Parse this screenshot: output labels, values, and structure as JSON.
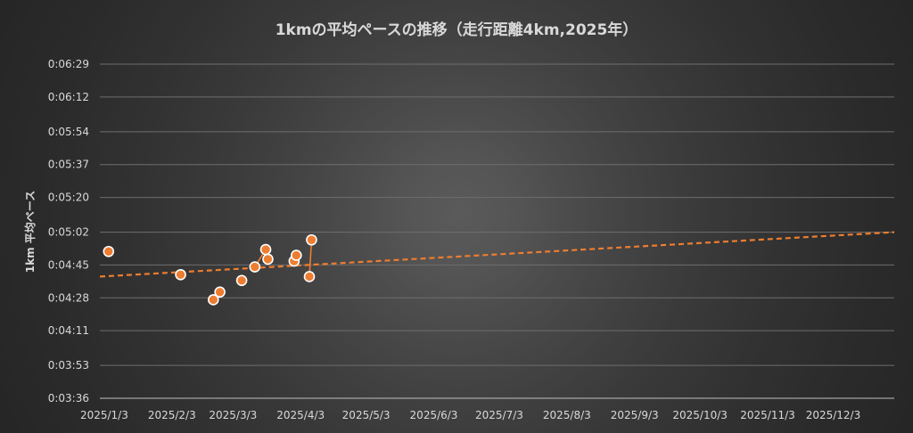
{
  "chart_data": {
    "type": "scatter",
    "title": "1kmの平均ペースの推移（走行距離4km,2025年）",
    "xlabel": "",
    "ylabel": "1km 平均ペース",
    "x_tick_labels": [
      "2025/1/3",
      "2025/2/3",
      "2025/3/3",
      "2025/4/3",
      "2025/5/3",
      "2025/6/3",
      "2025/7/3",
      "2025/8/3",
      "2025/9/3",
      "2025/10/3",
      "2025/11/3",
      "2025/12/3"
    ],
    "x_ticks": [
      "2025-01-03",
      "2025-02-03",
      "2025-03-03",
      "2025-04-03",
      "2025-05-03",
      "2025-06-03",
      "2025-07-03",
      "2025-08-03",
      "2025-09-03",
      "2025-10-03",
      "2025-11-03",
      "2025-12-03"
    ],
    "xlim": [
      "2025-01-01",
      "2025-12-31"
    ],
    "y_tick_labels": [
      "0:03:36",
      "0:03:53",
      "0:04:11",
      "0:04:28",
      "0:04:45",
      "0:05:02",
      "0:05:20",
      "0:05:37",
      "0:05:54",
      "0:06:12",
      "0:06:29"
    ],
    "ylim": [
      "0:03:36",
      "0:06:29"
    ],
    "grid": true,
    "marker_color": "#ED7D31",
    "series": [
      {
        "points": [
          {
            "x": "2025-01-05",
            "y": "0:04:52"
          },
          {
            "x": "2025-02-07",
            "y": "0:04:40"
          },
          {
            "x": "2025-02-22",
            "y": "0:04:27"
          },
          {
            "x": "2025-02-25",
            "y": "0:04:31"
          },
          {
            "x": "2025-03-07",
            "y": "0:04:37"
          },
          {
            "x": "2025-03-13",
            "y": "0:04:44"
          },
          {
            "x": "2025-03-18",
            "y": "0:04:53",
            "connect_prev": true
          },
          {
            "x": "2025-03-19",
            "y": "0:04:48",
            "connect_prev": true
          },
          {
            "x": "2025-03-31",
            "y": "0:04:47"
          },
          {
            "x": "2025-04-01",
            "y": "0:04:50",
            "connect_prev": true
          },
          {
            "x": "2025-04-07",
            "y": "0:04:39"
          },
          {
            "x": "2025-04-08",
            "y": "0:04:58",
            "connect_prev": true
          }
        ]
      }
    ],
    "trendline": {
      "style": "dashed",
      "color": "#ED7D31",
      "start": {
        "x": "2025-01-01",
        "y": "0:04:39"
      },
      "end": {
        "x": "2025-12-31",
        "y": "0:05:02"
      }
    }
  }
}
